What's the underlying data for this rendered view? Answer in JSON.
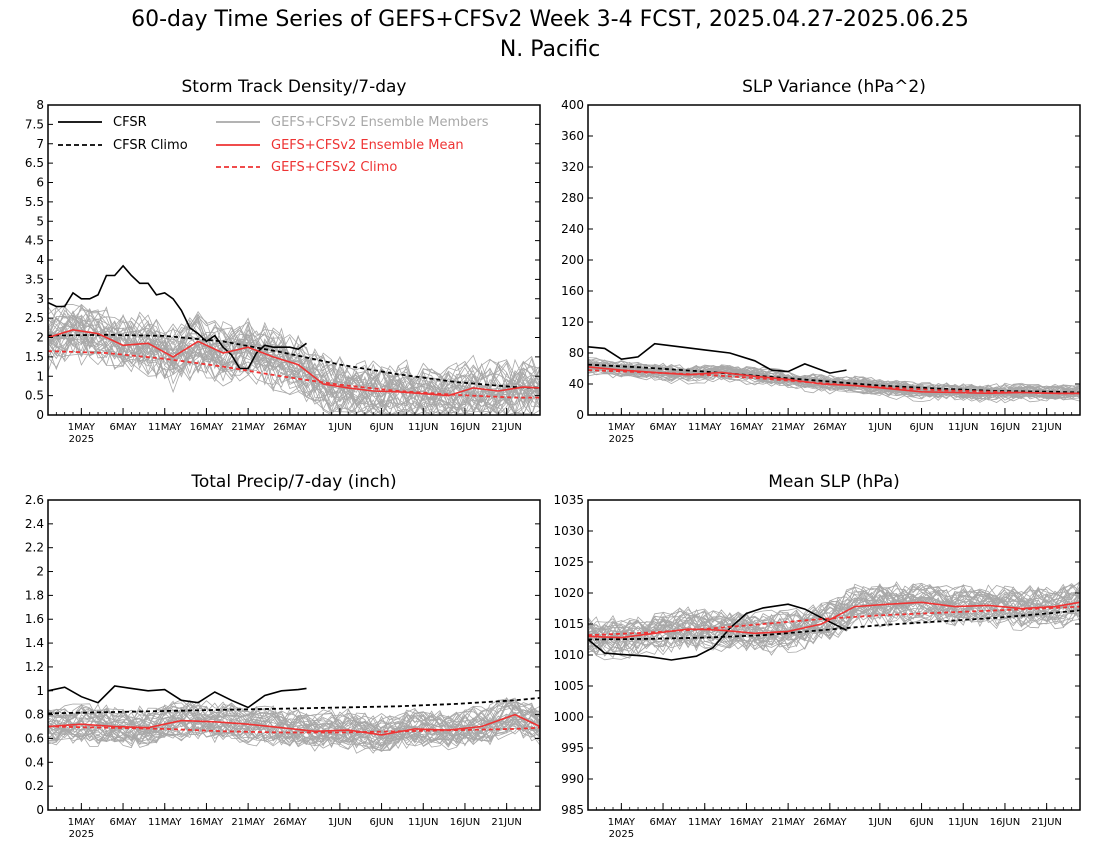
{
  "figure": {
    "title_line1": "60-day Time Series of GEFS+CFSv2 Week 3-4 FCST, 2025.04.27-2025.06.25",
    "title_line2": "N. Pacific"
  },
  "colors": {
    "cfsr": "#000000",
    "members": "#a8a8a8",
    "ens_mean": "#ee3333",
    "climo_red": "#ee3333"
  },
  "x_axis": {
    "date_range": [
      "2025-04-27",
      "2025-06-25"
    ],
    "tick_labels": [
      "1MAY",
      "6MAY",
      "11MAY",
      "16MAY",
      "21MAY",
      "26MAY",
      "1JUN",
      "6JUN",
      "11JUN",
      "16JUN",
      "21JUN"
    ],
    "tick_dates": [
      "2025-05-01",
      "2025-05-06",
      "2025-05-11",
      "2025-05-16",
      "2025-05-21",
      "2025-05-26",
      "2025-06-01",
      "2025-06-06",
      "2025-06-11",
      "2025-06-16",
      "2025-06-21"
    ],
    "year_label": "2025"
  },
  "legend": {
    "cfsr": "CFSR",
    "cfsr_climo": "CFSR Climo",
    "members": "GEFS+CFSv2 Ensemble Members",
    "ens_mean": "GEFS+CFSv2 Ensemble Mean",
    "ens_climo": "GEFS+CFSv2 Climo"
  },
  "chart_data": [
    {
      "type": "line",
      "title": "Storm Track Density/7-day",
      "ylim": [
        0,
        8
      ],
      "yticks": [
        0,
        0.5,
        1,
        1.5,
        2,
        2.5,
        3,
        3.5,
        4,
        4.5,
        5,
        5.5,
        6,
        6.5,
        7,
        7.5,
        8
      ],
      "legend_position": "top",
      "series": [
        {
          "name": "CFSR",
          "style": "solid-black",
          "x": [
            "2025-04-27",
            "2025-04-28",
            "2025-04-29",
            "2025-04-30",
            "2025-05-01",
            "2025-05-02",
            "2025-05-03",
            "2025-05-04",
            "2025-05-05",
            "2025-05-06",
            "2025-05-07",
            "2025-05-08",
            "2025-05-09",
            "2025-05-10",
            "2025-05-11",
            "2025-05-12",
            "2025-05-13",
            "2025-05-14",
            "2025-05-15",
            "2025-05-16",
            "2025-05-17",
            "2025-05-18",
            "2025-05-19",
            "2025-05-20",
            "2025-05-21",
            "2025-05-22",
            "2025-05-23",
            "2025-05-24",
            "2025-05-25",
            "2025-05-26",
            "2025-05-27",
            "2025-05-28"
          ],
          "y": [
            2.9,
            2.8,
            2.8,
            3.15,
            3.0,
            3.0,
            3.1,
            3.6,
            3.6,
            3.85,
            3.6,
            3.4,
            3.4,
            3.1,
            3.15,
            3.0,
            2.7,
            2.25,
            2.1,
            1.9,
            2.05,
            1.75,
            1.55,
            1.2,
            1.2,
            1.6,
            1.8,
            1.75,
            1.75,
            1.75,
            1.7,
            1.85
          ]
        },
        {
          "name": "CFSR Climo",
          "style": "dashed-black",
          "x": [
            "2025-04-27",
            "2025-05-04",
            "2025-05-11",
            "2025-05-18",
            "2025-05-25",
            "2025-06-01",
            "2025-06-08",
            "2025-06-15",
            "2025-06-22",
            "2025-06-25"
          ],
          "y": [
            2.05,
            2.07,
            2.04,
            1.9,
            1.62,
            1.3,
            1.05,
            0.85,
            0.72,
            0.7
          ]
        },
        {
          "name": "GEFS+CFSv2 Ensemble Mean",
          "style": "solid-red",
          "x": [
            "2025-04-27",
            "2025-04-30",
            "2025-05-03",
            "2025-05-06",
            "2025-05-09",
            "2025-05-12",
            "2025-05-15",
            "2025-05-18",
            "2025-05-21",
            "2025-05-24",
            "2025-05-27",
            "2025-05-30",
            "2025-06-02",
            "2025-06-05",
            "2025-06-08",
            "2025-06-11",
            "2025-06-14",
            "2025-06-17",
            "2025-06-20",
            "2025-06-23",
            "2025-06-25"
          ],
          "y": [
            2.0,
            2.2,
            2.1,
            1.8,
            1.85,
            1.5,
            1.9,
            1.6,
            1.75,
            1.5,
            1.3,
            0.8,
            0.7,
            0.62,
            0.6,
            0.55,
            0.5,
            0.7,
            0.62,
            0.72,
            0.7
          ]
        },
        {
          "name": "GEFS+CFSv2 Climo",
          "style": "dashed-red",
          "x": [
            "2025-04-27",
            "2025-05-04",
            "2025-05-11",
            "2025-05-18",
            "2025-05-25",
            "2025-06-01",
            "2025-06-08",
            "2025-06-15",
            "2025-06-22",
            "2025-06-25"
          ],
          "y": [
            1.65,
            1.6,
            1.45,
            1.25,
            1.0,
            0.78,
            0.62,
            0.52,
            0.45,
            0.45
          ]
        }
      ]
    },
    {
      "type": "line",
      "title": "SLP Variance (hPa^2)",
      "ylim": [
        0,
        400
      ],
      "yticks": [
        0,
        40,
        80,
        120,
        160,
        200,
        240,
        280,
        320,
        360,
        400
      ],
      "series": [
        {
          "name": "CFSR",
          "style": "solid-black",
          "x": [
            "2025-04-27",
            "2025-04-29",
            "2025-05-01",
            "2025-05-03",
            "2025-05-05",
            "2025-05-08",
            "2025-05-11",
            "2025-05-14",
            "2025-05-17",
            "2025-05-19",
            "2025-05-21",
            "2025-05-23",
            "2025-05-26",
            "2025-05-28"
          ],
          "y": [
            88,
            86,
            72,
            75,
            92,
            88,
            84,
            80,
            70,
            58,
            56,
            66,
            54,
            58
          ]
        },
        {
          "name": "CFSR Climo",
          "style": "dashed-black",
          "x": [
            "2025-04-27",
            "2025-05-04",
            "2025-05-11",
            "2025-05-18",
            "2025-05-25",
            "2025-06-01",
            "2025-06-08",
            "2025-06-15",
            "2025-06-22",
            "2025-06-25"
          ],
          "y": [
            65,
            61,
            56,
            50,
            44,
            38,
            34,
            31,
            30,
            29
          ]
        },
        {
          "name": "GEFS+CFSv2 Ensemble Mean",
          "style": "solid-red",
          "x": [
            "2025-04-27",
            "2025-05-01",
            "2025-05-05",
            "2025-05-09",
            "2025-05-13",
            "2025-05-17",
            "2025-05-21",
            "2025-05-25",
            "2025-05-29",
            "2025-06-02",
            "2025-06-06",
            "2025-06-10",
            "2025-06-14",
            "2025-06-18",
            "2025-06-22",
            "2025-06-25"
          ],
          "y": [
            62,
            58,
            55,
            52,
            55,
            50,
            46,
            40,
            38,
            34,
            30,
            29,
            28,
            29,
            28,
            28
          ]
        },
        {
          "name": "GEFS+CFSv2 Climo",
          "style": "dashed-red",
          "x": [
            "2025-04-27",
            "2025-05-04",
            "2025-05-11",
            "2025-05-18",
            "2025-05-25",
            "2025-06-01",
            "2025-06-08",
            "2025-06-15",
            "2025-06-22",
            "2025-06-25"
          ],
          "y": [
            58,
            55,
            52,
            47,
            41,
            36,
            32,
            30,
            28,
            28
          ]
        }
      ]
    },
    {
      "type": "line",
      "title": "Total Precip/7-day (inch)",
      "ylim": [
        0,
        2.6
      ],
      "yticks": [
        0,
        0.2,
        0.4,
        0.6,
        0.8,
        1,
        1.2,
        1.4,
        1.6,
        1.8,
        2,
        2.2,
        2.4,
        2.6
      ],
      "series": [
        {
          "name": "CFSR",
          "style": "solid-black",
          "x": [
            "2025-04-27",
            "2025-04-29",
            "2025-05-01",
            "2025-05-03",
            "2025-05-05",
            "2025-05-07",
            "2025-05-09",
            "2025-05-11",
            "2025-05-13",
            "2025-05-15",
            "2025-05-17",
            "2025-05-19",
            "2025-05-21",
            "2025-05-23",
            "2025-05-25",
            "2025-05-27",
            "2025-05-28"
          ],
          "y": [
            1.0,
            1.03,
            0.95,
            0.9,
            1.04,
            1.02,
            1.0,
            1.01,
            0.92,
            0.9,
            0.99,
            0.92,
            0.86,
            0.96,
            1.0,
            1.01,
            1.02
          ]
        },
        {
          "name": "CFSR Climo",
          "style": "dashed-black",
          "x": [
            "2025-04-27",
            "2025-05-04",
            "2025-05-11",
            "2025-05-18",
            "2025-05-25",
            "2025-06-01",
            "2025-06-08",
            "2025-06-15",
            "2025-06-22",
            "2025-06-25"
          ],
          "y": [
            0.81,
            0.82,
            0.83,
            0.84,
            0.85,
            0.86,
            0.87,
            0.89,
            0.92,
            0.94
          ]
        },
        {
          "name": "GEFS+CFSv2 Ensemble Mean",
          "style": "solid-red",
          "x": [
            "2025-04-27",
            "2025-05-01",
            "2025-05-05",
            "2025-05-09",
            "2025-05-13",
            "2025-05-17",
            "2025-05-21",
            "2025-05-25",
            "2025-05-29",
            "2025-06-02",
            "2025-06-06",
            "2025-06-10",
            "2025-06-14",
            "2025-06-18",
            "2025-06-22",
            "2025-06-25"
          ],
          "y": [
            0.7,
            0.72,
            0.7,
            0.69,
            0.75,
            0.74,
            0.72,
            0.69,
            0.66,
            0.67,
            0.63,
            0.68,
            0.67,
            0.7,
            0.8,
            0.7
          ]
        },
        {
          "name": "GEFS+CFSv2 Climo",
          "style": "dashed-red",
          "x": [
            "2025-04-27",
            "2025-05-04",
            "2025-05-11",
            "2025-05-18",
            "2025-05-25",
            "2025-06-01",
            "2025-06-08",
            "2025-06-15",
            "2025-06-22",
            "2025-06-25"
          ],
          "y": [
            0.7,
            0.69,
            0.68,
            0.66,
            0.65,
            0.65,
            0.66,
            0.67,
            0.68,
            0.69
          ]
        }
      ]
    },
    {
      "type": "line",
      "title": "Mean SLP (hPa)",
      "ylim": [
        985,
        1035
      ],
      "yticks": [
        985,
        990,
        995,
        1000,
        1005,
        1010,
        1015,
        1020,
        1025,
        1030,
        1035
      ],
      "series": [
        {
          "name": "CFSR",
          "style": "solid-black",
          "x": [
            "2025-04-27",
            "2025-04-29",
            "2025-05-01",
            "2025-05-04",
            "2025-05-07",
            "2025-05-10",
            "2025-05-12",
            "2025-05-14",
            "2025-05-16",
            "2025-05-18",
            "2025-05-21",
            "2025-05-23",
            "2025-05-25",
            "2025-05-28"
          ],
          "y": [
            1012.5,
            1010.3,
            1010.1,
            1009.8,
            1009.2,
            1009.8,
            1011.2,
            1014.3,
            1016.7,
            1017.6,
            1018.2,
            1017.4,
            1016.0,
            1014.0
          ]
        },
        {
          "name": "CFSR Climo",
          "style": "dashed-black",
          "x": [
            "2025-04-27",
            "2025-05-04",
            "2025-05-11",
            "2025-05-18",
            "2025-05-25",
            "2025-06-01",
            "2025-06-08",
            "2025-06-15",
            "2025-06-22",
            "2025-06-25"
          ],
          "y": [
            1012.5,
            1012.6,
            1012.8,
            1013.2,
            1014.0,
            1014.8,
            1015.4,
            1016.0,
            1016.8,
            1017.2
          ]
        },
        {
          "name": "GEFS+CFSv2 Ensemble Mean",
          "style": "solid-red",
          "x": [
            "2025-04-27",
            "2025-05-01",
            "2025-05-05",
            "2025-05-09",
            "2025-05-13",
            "2025-05-17",
            "2025-05-21",
            "2025-05-25",
            "2025-05-29",
            "2025-06-02",
            "2025-06-06",
            "2025-06-10",
            "2025-06-14",
            "2025-06-18",
            "2025-06-22",
            "2025-06-25"
          ],
          "y": [
            1013.0,
            1012.8,
            1013.5,
            1014.2,
            1014.0,
            1013.5,
            1013.8,
            1015.0,
            1017.8,
            1018.2,
            1018.5,
            1017.8,
            1018.0,
            1017.5,
            1017.8,
            1018.5
          ]
        },
        {
          "name": "GEFS+CFSv2 Climo",
          "style": "dashed-red",
          "x": [
            "2025-04-27",
            "2025-05-04",
            "2025-05-11",
            "2025-05-18",
            "2025-05-25",
            "2025-06-01",
            "2025-06-08",
            "2025-06-15",
            "2025-06-22",
            "2025-06-25"
          ],
          "y": [
            1013.2,
            1013.6,
            1014.2,
            1015.0,
            1015.8,
            1016.4,
            1016.8,
            1017.2,
            1017.6,
            1017.8
          ]
        }
      ]
    }
  ]
}
